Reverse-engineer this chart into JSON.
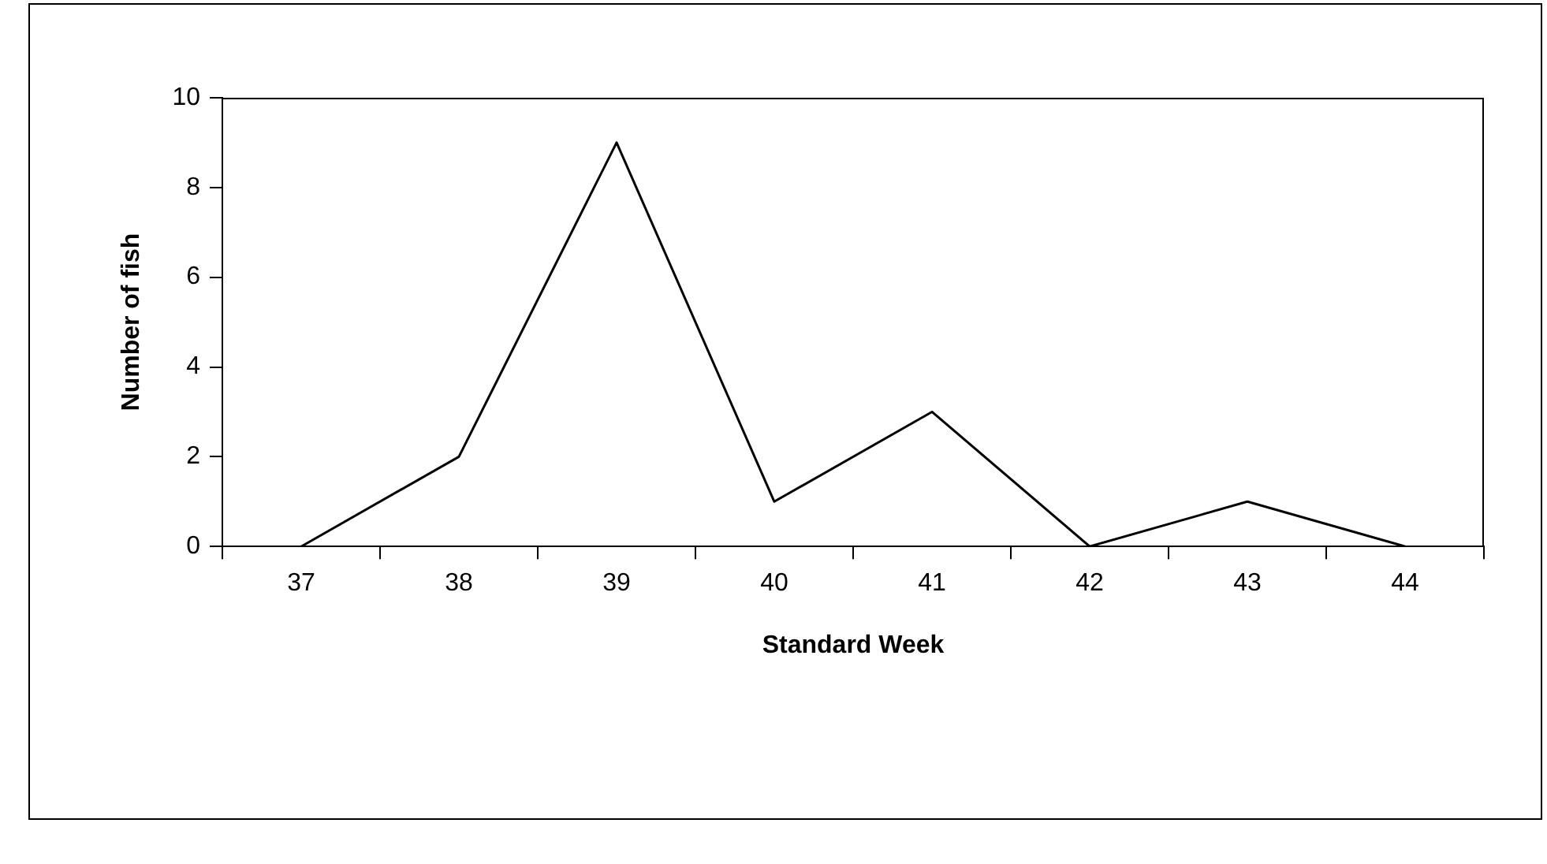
{
  "chart_data": {
    "type": "line",
    "xlabel": "Standard Week",
    "ylabel": "Number of fish",
    "categories": [
      "37",
      "38",
      "39",
      "40",
      "41",
      "42",
      "43",
      "44"
    ],
    "series": [
      {
        "color": "#000000",
        "values": [
          0,
          2,
          9,
          1,
          3,
          0,
          1,
          0
        ]
      }
    ],
    "ylim": [
      0,
      10
    ],
    "yticks": [
      0,
      2,
      4,
      6,
      8,
      10
    ],
    "grid": false,
    "legend": false,
    "marker": "none",
    "line_style": "solid"
  }
}
